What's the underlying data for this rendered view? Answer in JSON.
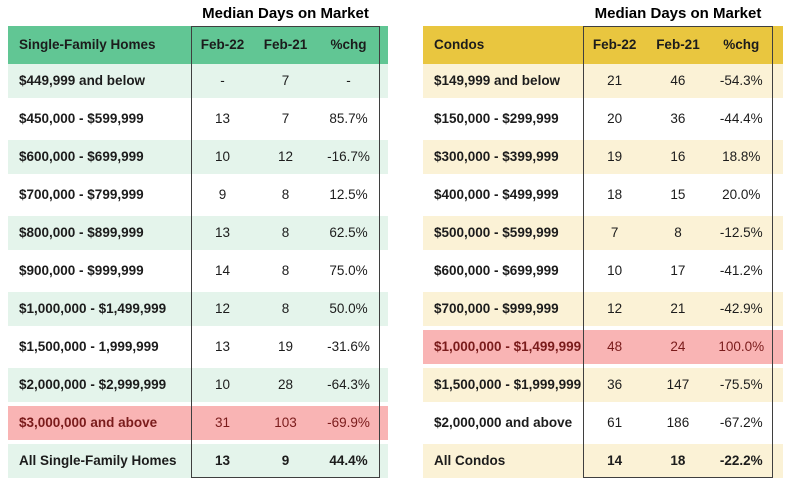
{
  "chart_data": [
    {
      "type": "table",
      "title": "Median Days on Market",
      "entity": "Single-Family Homes",
      "columns": [
        "Feb-22",
        "Feb-21",
        "%chg"
      ],
      "rows": [
        {
          "label": "$449,999 and below",
          "feb22": "-",
          "feb21": "7",
          "chg": "-",
          "variant": "tint"
        },
        {
          "label": "$450,000 - $599,999",
          "feb22": "13",
          "feb21": "7",
          "chg": "85.7%",
          "variant": "plain"
        },
        {
          "label": "$600,000 - $699,999",
          "feb22": "10",
          "feb21": "12",
          "chg": "-16.7%",
          "variant": "tint"
        },
        {
          "label": "$700,000 - $799,999",
          "feb22": "9",
          "feb21": "8",
          "chg": "12.5%",
          "variant": "plain"
        },
        {
          "label": "$800,000 - $899,999",
          "feb22": "13",
          "feb21": "8",
          "chg": "62.5%",
          "variant": "tint"
        },
        {
          "label": "$900,000 - $999,999",
          "feb22": "14",
          "feb21": "8",
          "chg": "75.0%",
          "variant": "plain"
        },
        {
          "label": "$1,000,000 - $1,499,999",
          "feb22": "12",
          "feb21": "8",
          "chg": "50.0%",
          "variant": "tint"
        },
        {
          "label": "$1,500,000 - 1,999,999",
          "feb22": "13",
          "feb21": "19",
          "chg": "-31.6%",
          "variant": "plain"
        },
        {
          "label": "$2,000,000 - $2,999,999",
          "feb22": "10",
          "feb21": "28",
          "chg": "-64.3%",
          "variant": "tint"
        },
        {
          "label": "$3,000,000 and above",
          "feb22": "31",
          "feb21": "103",
          "chg": "-69.9%",
          "variant": "alert"
        },
        {
          "label": "All Single-Family Homes",
          "feb22": "13",
          "feb21": "9",
          "chg": "44.4%",
          "variant": "total"
        }
      ]
    },
    {
      "type": "table",
      "title": "Median Days on Market",
      "entity": "Condos",
      "columns": [
        "Feb-22",
        "Feb-21",
        "%chg"
      ],
      "rows": [
        {
          "label": "$149,999 and below",
          "feb22": "21",
          "feb21": "46",
          "chg": "-54.3%",
          "variant": "tint"
        },
        {
          "label": "$150,000 - $299,999",
          "feb22": "20",
          "feb21": "36",
          "chg": "-44.4%",
          "variant": "plain"
        },
        {
          "label": "$300,000 - $399,999",
          "feb22": "19",
          "feb21": "16",
          "chg": "18.8%",
          "variant": "tint"
        },
        {
          "label": "$400,000 - $499,999",
          "feb22": "18",
          "feb21": "15",
          "chg": "20.0%",
          "variant": "plain"
        },
        {
          "label": "$500,000 - $599,999",
          "feb22": "7",
          "feb21": "8",
          "chg": "-12.5%",
          "variant": "tint"
        },
        {
          "label": "$600,000 - $699,999",
          "feb22": "10",
          "feb21": "17",
          "chg": "-41.2%",
          "variant": "plain"
        },
        {
          "label": "$700,000 - $999,999",
          "feb22": "12",
          "feb21": "21",
          "chg": "-42.9%",
          "variant": "tint"
        },
        {
          "label": "$1,000,000 - $1,499,999",
          "feb22": "48",
          "feb21": "24",
          "chg": "100.0%",
          "variant": "alert"
        },
        {
          "label": "$1,500,000 - $1,999,999",
          "feb22": "36",
          "feb21": "147",
          "chg": "-75.5%",
          "variant": "tint"
        },
        {
          "label": "$2,000,000 and above",
          "feb22": "61",
          "feb21": "186",
          "chg": "-67.2%",
          "variant": "plain"
        },
        {
          "label": "All Condos",
          "feb22": "14",
          "feb21": "18",
          "chg": "-22.2%",
          "variant": "total"
        }
      ]
    }
  ],
  "colors": {
    "green_header": "#61c694",
    "green_tint": "#e4f4eb",
    "gold_header": "#e9c63f",
    "gold_tint": "#fbf2d6",
    "alert_pink": "#f9b4b4",
    "alert_text": "#7a1b1b",
    "border": "#3f3f3f"
  }
}
